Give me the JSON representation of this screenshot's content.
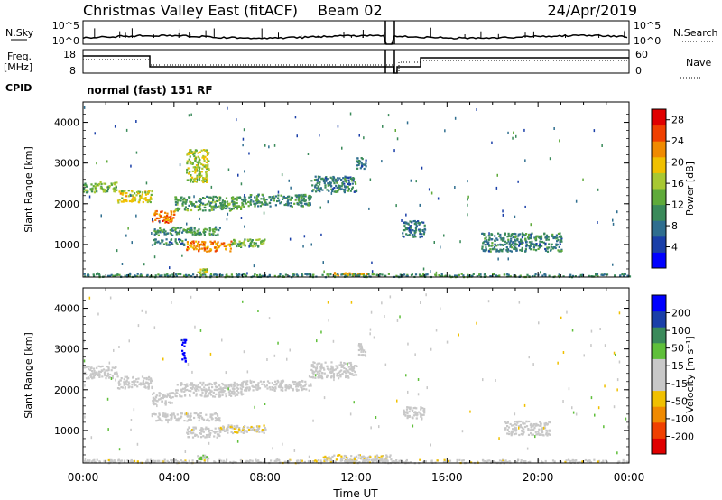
{
  "header": {
    "title": "Christmas Valley East (fitACF)",
    "beam": "Beam 02",
    "date": "24/Apr/2019"
  },
  "strips": {
    "nsky_label": "N.Sky",
    "nsearch_label": "N.Search",
    "noise_ticks": [
      "10^5",
      "10^0"
    ],
    "freq_label": "Freq.",
    "freq_unit": "[MHz]",
    "freq_ticks": [
      "18",
      "8"
    ],
    "nave_label": "Nave",
    "nave_ticks": [
      "60",
      "0"
    ],
    "cpid_label": "CPID",
    "cpid_text": "normal (fast) 151 RF"
  },
  "colors": {
    "power": [
      "#0000ff",
      "#1a3fa8",
      "#2f6e8f",
      "#3a8a5a",
      "#5faa3a",
      "#a8c832",
      "#f0c000",
      "#f08a00",
      "#f04000",
      "#e00000"
    ],
    "velocity": [
      "#e00000",
      "#f04000",
      "#f08a00",
      "#f0c000",
      "#c8c8c8",
      "#c8c8c8",
      "#5fbf3a",
      "#3a8a5a",
      "#1a3fa8",
      "#0000ff"
    ]
  },
  "chart_data": [
    {
      "type": "heatmap",
      "panel": "power",
      "ylabel": "Slant Range [km]",
      "ylim": [
        200,
        4500
      ],
      "yticks": [
        "1000",
        "2000",
        "3000",
        "4000"
      ],
      "xlim_hours": [
        0,
        24
      ],
      "colorbar_label": "Power [dB]",
      "colorbar_ticks": [
        "4",
        "8",
        "12",
        "16",
        "20",
        "24",
        "28"
      ],
      "colorbar_range": [
        0,
        30
      ],
      "regions": [
        {
          "t0": 0.0,
          "t1": 1.5,
          "r0": 2300,
          "r1": 2550,
          "value": 14
        },
        {
          "t0": 1.5,
          "t1": 3.0,
          "r0": 2050,
          "r1": 2350,
          "value": 18
        },
        {
          "t0": 3.0,
          "t1": 4.0,
          "r0": 1550,
          "r1": 1850,
          "value": 24
        },
        {
          "t0": 4.0,
          "t1": 7.0,
          "r0": 1850,
          "r1": 2200,
          "value": 12
        },
        {
          "t0": 7.0,
          "t1": 10.0,
          "r0": 1950,
          "r1": 2250,
          "value": 10
        },
        {
          "t0": 10.0,
          "t1": 12.0,
          "r0": 2300,
          "r1": 2700,
          "value": 9
        },
        {
          "t0": 12.0,
          "t1": 12.4,
          "r0": 2850,
          "r1": 3150,
          "value": 8
        },
        {
          "t0": 3.0,
          "t1": 6.0,
          "r0": 1250,
          "r1": 1450,
          "value": 11
        },
        {
          "t0": 3.0,
          "t1": 4.5,
          "r0": 1000,
          "r1": 1150,
          "value": 9
        },
        {
          "t0": 4.5,
          "t1": 6.5,
          "r0": 850,
          "r1": 1100,
          "value": 22
        },
        {
          "t0": 6.5,
          "t1": 8.0,
          "r0": 950,
          "r1": 1150,
          "value": 14
        },
        {
          "t0": 4.5,
          "t1": 5.5,
          "r0": 2550,
          "r1": 3350,
          "value": 16
        },
        {
          "t0": 5.0,
          "t1": 5.5,
          "r0": 300,
          "r1": 420,
          "value": 18
        },
        {
          "t0": 17.5,
          "t1": 21.0,
          "r0": 850,
          "r1": 1300,
          "value": 9
        },
        {
          "t0": 14.0,
          "t1": 15.0,
          "r0": 1200,
          "r1": 1600,
          "value": 8
        },
        {
          "t0": 11.0,
          "t1": 13.0,
          "r0": 260,
          "r1": 330,
          "value": 22
        },
        {
          "t0": 0.0,
          "t1": 24.0,
          "r0": 220,
          "r1": 300,
          "value": 10
        }
      ]
    },
    {
      "type": "heatmap",
      "panel": "velocity",
      "ylabel": "Slant Range [km]",
      "ylim": [
        200,
        4500
      ],
      "yticks": [
        "1000",
        "2000",
        "3000",
        "4000"
      ],
      "xlim_hours": [
        0,
        24
      ],
      "xlabel": "Time UT",
      "xticks": [
        "00:00",
        "04:00",
        "08:00",
        "12:00",
        "16:00",
        "20:00",
        "00:00"
      ],
      "colorbar_label": "Velocity [m s⁻¹]",
      "colorbar_ticks": [
        "200",
        "100",
        "50",
        "15",
        "-15",
        "-50",
        "-100",
        "-200"
      ],
      "colorbar_range": [
        -250,
        250
      ],
      "regions": [
        {
          "t0": 0.0,
          "t1": 1.5,
          "r0": 2300,
          "r1": 2600,
          "value": 0
        },
        {
          "t0": 1.5,
          "t1": 3.0,
          "r0": 2050,
          "r1": 2350,
          "value": 0
        },
        {
          "t0": 3.0,
          "t1": 4.0,
          "r0": 1650,
          "r1": 1950,
          "value": 0
        },
        {
          "t0": 4.0,
          "t1": 7.0,
          "r0": 1850,
          "r1": 2200,
          "value": 0
        },
        {
          "t0": 7.0,
          "t1": 10.0,
          "r0": 2000,
          "r1": 2250,
          "value": 0
        },
        {
          "t0": 10.0,
          "t1": 12.0,
          "r0": 2300,
          "r1": 2700,
          "value": 0
        },
        {
          "t0": 12.0,
          "t1": 12.4,
          "r0": 2850,
          "r1": 3150,
          "value": 0
        },
        {
          "t0": 3.0,
          "t1": 6.0,
          "r0": 1250,
          "r1": 1450,
          "value": 0
        },
        {
          "t0": 4.5,
          "t1": 6.0,
          "r0": 850,
          "r1": 1100,
          "value": 0
        },
        {
          "t0": 6.0,
          "t1": 8.0,
          "r0": 950,
          "r1": 1150,
          "value": -40
        },
        {
          "t0": 4.3,
          "t1": 4.5,
          "r0": 2700,
          "r1": 3250,
          "value": 220
        },
        {
          "t0": 5.0,
          "t1": 5.5,
          "r0": 300,
          "r1": 420,
          "value": 40
        },
        {
          "t0": 18.5,
          "t1": 20.5,
          "r0": 900,
          "r1": 1250,
          "value": 0
        },
        {
          "t0": 14.0,
          "t1": 15.0,
          "r0": 1300,
          "r1": 1600,
          "value": 0
        },
        {
          "t0": 10.5,
          "t1": 13.5,
          "r0": 240,
          "r1": 420,
          "value": -40
        },
        {
          "t0": 0.0,
          "t1": 24.0,
          "r0": 220,
          "r1": 300,
          "value": -25
        }
      ]
    }
  ]
}
